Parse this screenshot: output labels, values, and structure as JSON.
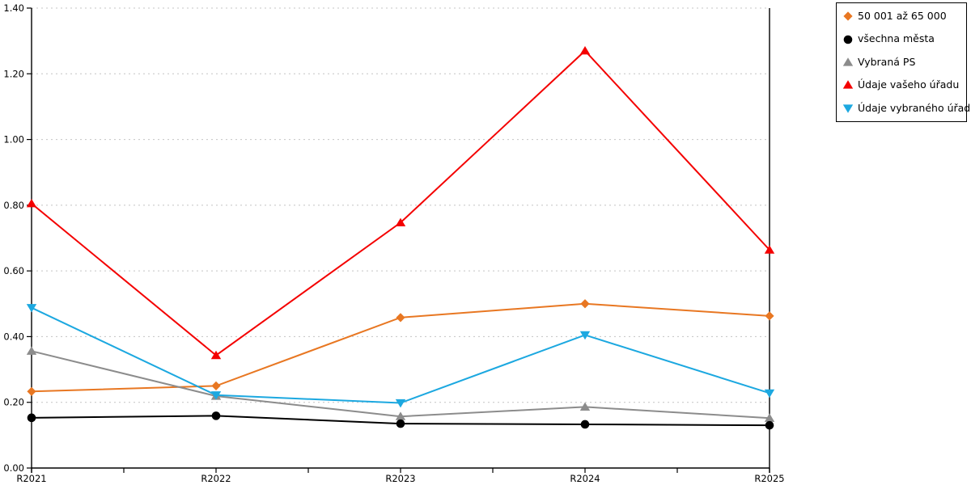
{
  "chart_data": {
    "type": "line",
    "title": "",
    "xlabel": "",
    "ylabel": "",
    "categories": [
      "R2021",
      "R2022",
      "R2023",
      "R2024",
      "R2025"
    ],
    "series": [
      {
        "name": "50 001 až 65 000",
        "marker": "diamond",
        "color": "#E87722",
        "values": [
          0.233,
          0.25,
          0.458,
          0.5,
          0.463
        ]
      },
      {
        "name": "všechna města",
        "marker": "circle",
        "color": "#000000",
        "values": [
          0.153,
          0.159,
          0.135,
          0.133,
          0.13
        ]
      },
      {
        "name": "Vybraná PS",
        "marker": "triangle-up",
        "color": "#8C8C8C",
        "values": [
          0.356,
          0.219,
          0.157,
          0.186,
          0.152
        ]
      },
      {
        "name": "Údaje vašeho úřadu",
        "marker": "triangle-up",
        "color": "#F40000",
        "values": [
          0.805,
          0.343,
          0.747,
          1.27,
          0.664
        ]
      },
      {
        "name": "Údaje vybraného úřadu",
        "marker": "triangle-down",
        "color": "#1CA8E0",
        "values": [
          0.488,
          0.222,
          0.198,
          0.405,
          0.228
        ]
      }
    ],
    "draw_order": [
      0,
      2,
      1,
      3,
      4
    ],
    "ylim": [
      0,
      1.4
    ],
    "ytick_step": 0.2,
    "ytick_labels": [
      "0.00",
      "0.20",
      "0.40",
      "0.60",
      "0.80",
      "1.00",
      "1.20",
      "1.40"
    ],
    "grid": "horizontal-dashed",
    "legend_position": "outside-top-right",
    "colors": {
      "grid": "#C4C4C4",
      "axis": "#000000",
      "background": "#FFFFFF",
      "text": "#000000"
    }
  }
}
